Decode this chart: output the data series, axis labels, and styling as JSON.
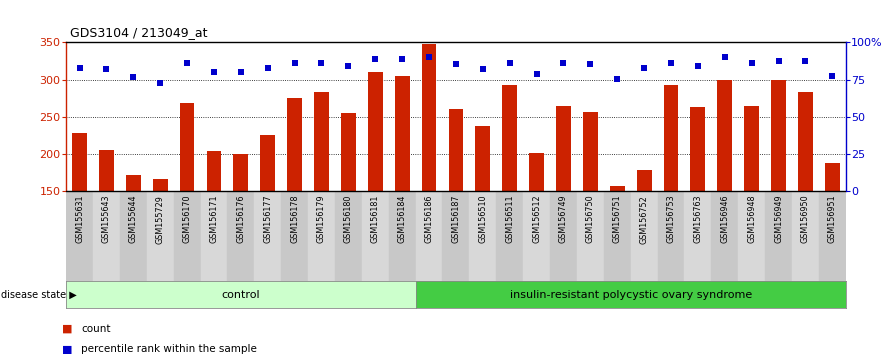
{
  "title": "GDS3104 / 213049_at",
  "samples": [
    "GSM155631",
    "GSM155643",
    "GSM155644",
    "GSM155729",
    "GSM156170",
    "GSM156171",
    "GSM156176",
    "GSM156177",
    "GSM156178",
    "GSM156179",
    "GSM156180",
    "GSM156181",
    "GSM156184",
    "GSM156186",
    "GSM156187",
    "GSM156510",
    "GSM156511",
    "GSM156512",
    "GSM156749",
    "GSM156750",
    "GSM156751",
    "GSM156752",
    "GSM156753",
    "GSM156763",
    "GSM156946",
    "GSM156948",
    "GSM156949",
    "GSM156950",
    "GSM156951"
  ],
  "bar_values": [
    228,
    205,
    172,
    167,
    268,
    204,
    200,
    225,
    275,
    284,
    255,
    310,
    305,
    348,
    260,
    238,
    293,
    202,
    264,
    257,
    157,
    179,
    293,
    263,
    300,
    264,
    300,
    284,
    188
  ],
  "percentile_values": [
    315,
    314,
    303,
    295,
    323,
    310,
    310,
    316,
    323,
    323,
    319,
    328,
    328,
    330,
    321,
    314,
    323,
    308,
    322,
    321,
    301,
    315,
    322,
    319,
    330,
    322,
    325,
    325,
    305
  ],
  "control_count": 13,
  "group1_label": "control",
  "group2_label": "insulin-resistant polycystic ovary syndrome",
  "group_label": "disease state",
  "bar_color": "#cc2200",
  "dot_color": "#0000cc",
  "control_fill": "#ccffcc",
  "disease_fill": "#44cc44",
  "ymin": 150,
  "ymax": 350,
  "yticks_left": [
    150,
    200,
    250,
    300,
    350
  ],
  "grid_vals": [
    200,
    250,
    300
  ],
  "legend_count": "count",
  "legend_pct": "percentile rank within the sample"
}
